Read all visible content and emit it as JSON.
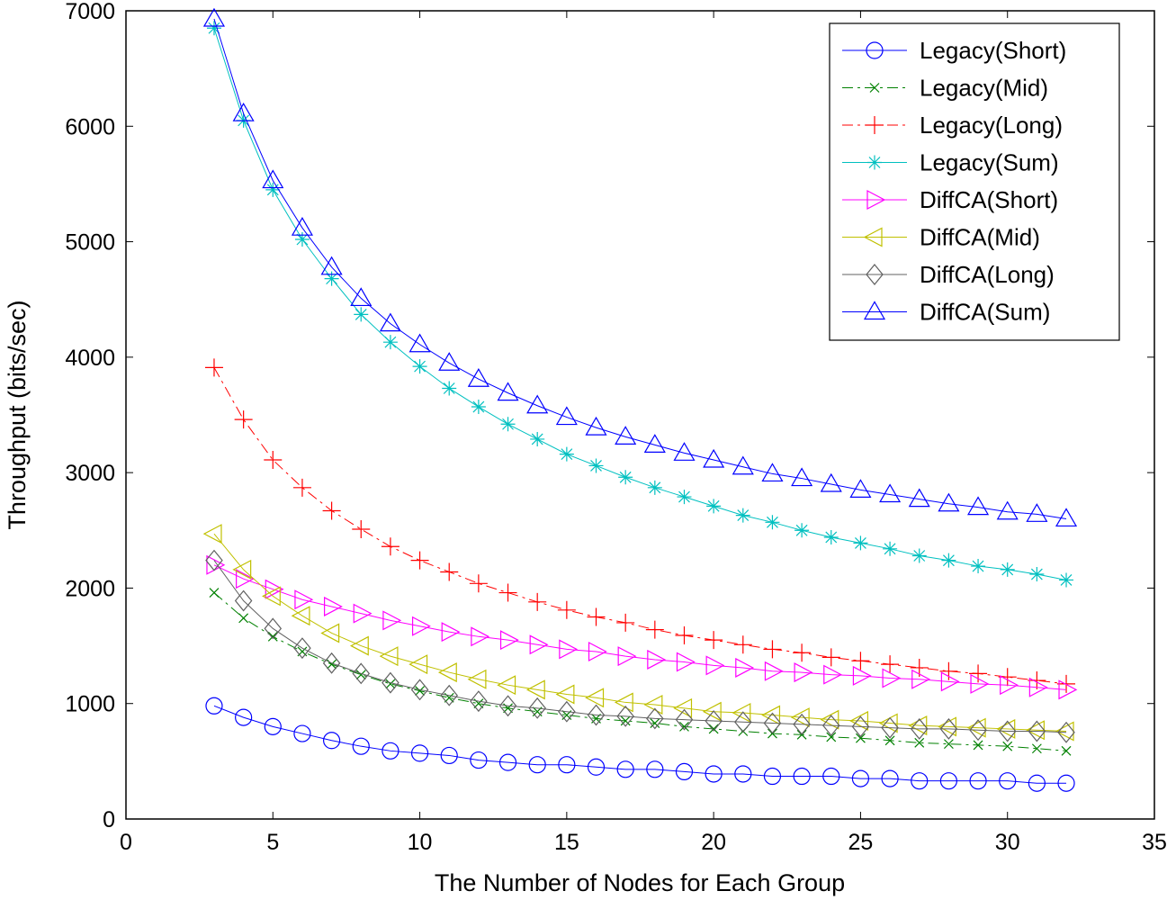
{
  "chart_data": {
    "type": "line",
    "title": "",
    "xlabel": "The Number of Nodes for Each Group",
    "ylabel": "Throughput (bits/sec)",
    "xlim": [
      0,
      35
    ],
    "ylim": [
      0,
      7000
    ],
    "xticks": [
      0,
      5,
      10,
      15,
      20,
      25,
      30,
      35
    ],
    "yticks": [
      0,
      1000,
      2000,
      3000,
      4000,
      5000,
      6000,
      7000
    ],
    "grid": false,
    "legend_position": "top-right",
    "x": [
      3,
      4,
      5,
      6,
      7,
      8,
      9,
      10,
      11,
      12,
      13,
      14,
      15,
      16,
      17,
      18,
      19,
      20,
      21,
      22,
      23,
      24,
      25,
      26,
      27,
      28,
      29,
      30,
      31,
      32
    ],
    "series": [
      {
        "name": "Legacy(Short)",
        "color": "#0000ff",
        "marker": "circle",
        "line": "solid",
        "values": [
          980,
          880,
          800,
          740,
          680,
          630,
          590,
          570,
          550,
          510,
          490,
          470,
          470,
          450,
          430,
          430,
          410,
          390,
          390,
          370,
          370,
          370,
          350,
          350,
          330,
          330,
          330,
          330,
          310,
          310
        ]
      },
      {
        "name": "Legacy(Mid)",
        "color": "#008000",
        "marker": "x",
        "line": "dashdot",
        "values": [
          1960,
          1740,
          1580,
          1450,
          1340,
          1250,
          1170,
          1110,
          1050,
          1000,
          960,
          930,
          900,
          870,
          850,
          830,
          800,
          780,
          760,
          740,
          730,
          710,
          700,
          680,
          660,
          650,
          640,
          630,
          610,
          590
        ]
      },
      {
        "name": "Legacy(Long)",
        "color": "#ff0000",
        "marker": "plus",
        "line": "dashdot",
        "values": [
          3910,
          3460,
          3110,
          2870,
          2670,
          2510,
          2360,
          2240,
          2140,
          2040,
          1960,
          1880,
          1810,
          1750,
          1700,
          1640,
          1590,
          1550,
          1510,
          1470,
          1440,
          1400,
          1370,
          1340,
          1310,
          1280,
          1260,
          1230,
          1200,
          1170
        ]
      },
      {
        "name": "Legacy(Sum)",
        "color": "#00c0c0",
        "marker": "asterisk",
        "line": "solid",
        "values": [
          6850,
          6050,
          5450,
          5020,
          4680,
          4370,
          4130,
          3920,
          3730,
          3570,
          3420,
          3290,
          3160,
          3060,
          2960,
          2870,
          2790,
          2710,
          2630,
          2570,
          2500,
          2440,
          2390,
          2340,
          2280,
          2240,
          2190,
          2160,
          2120,
          2070
        ]
      },
      {
        "name": "DiffCA(Short)",
        "color": "#ff00ff",
        "marker": "triangle-right",
        "line": "solid",
        "values": [
          2200,
          2080,
          1990,
          1900,
          1840,
          1780,
          1720,
          1670,
          1620,
          1580,
          1550,
          1510,
          1470,
          1450,
          1410,
          1380,
          1360,
          1330,
          1310,
          1280,
          1270,
          1250,
          1240,
          1220,
          1210,
          1190,
          1170,
          1160,
          1140,
          1120
        ]
      },
      {
        "name": "DiffCA(Mid)",
        "color": "#c0c000",
        "marker": "triangle-left",
        "line": "solid",
        "values": [
          2470,
          2160,
          1930,
          1760,
          1610,
          1500,
          1410,
          1340,
          1270,
          1210,
          1160,
          1120,
          1080,
          1050,
          1010,
          990,
          960,
          930,
          920,
          900,
          880,
          860,
          850,
          830,
          810,
          800,
          790,
          780,
          770,
          760
        ]
      },
      {
        "name": "DiffCA(Long)",
        "color": "#606060",
        "marker": "diamond",
        "line": "solid",
        "values": [
          2240,
          1890,
          1650,
          1480,
          1350,
          1260,
          1180,
          1120,
          1070,
          1020,
          980,
          960,
          930,
          900,
          890,
          870,
          860,
          850,
          840,
          830,
          820,
          810,
          800,
          790,
          780,
          780,
          770,
          760,
          760,
          750
        ]
      },
      {
        "name": "DiffCA(Sum)",
        "color": "#0000ff",
        "marker": "triangle-up",
        "line": "solid",
        "values": [
          6930,
          6110,
          5530,
          5120,
          4780,
          4510,
          4290,
          4110,
          3950,
          3810,
          3690,
          3580,
          3480,
          3390,
          3310,
          3240,
          3170,
          3110,
          3050,
          2990,
          2950,
          2900,
          2850,
          2810,
          2770,
          2730,
          2700,
          2660,
          2640,
          2600
        ]
      }
    ]
  }
}
